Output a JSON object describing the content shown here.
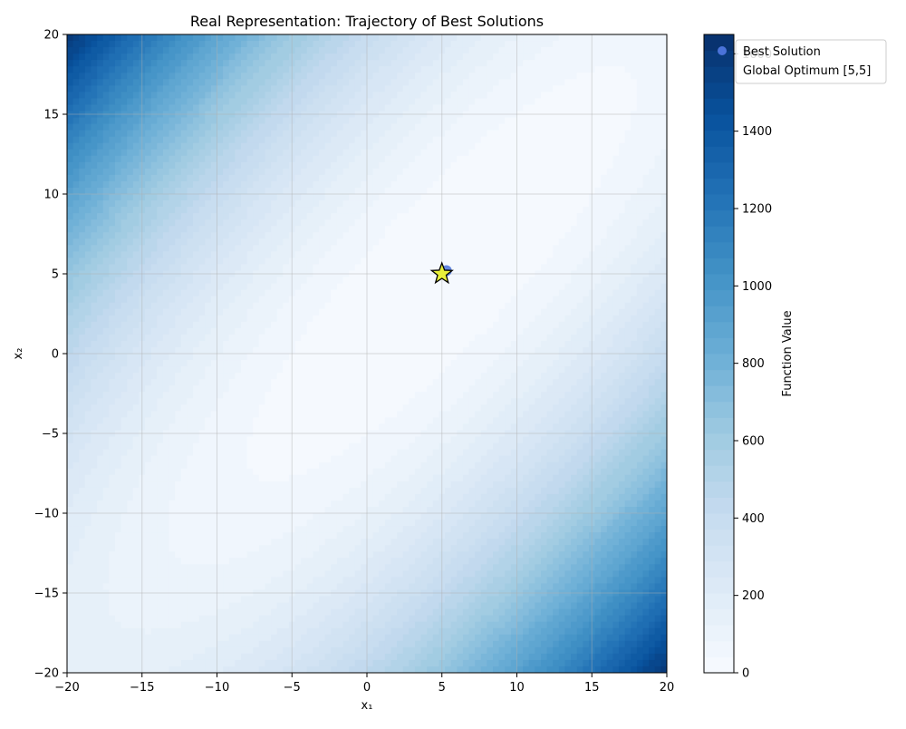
{
  "chart_data": {
    "type": "heatmap",
    "title": "Real Representation: Trajectory of Best Solutions",
    "xlabel": "x₁",
    "ylabel": "x₂",
    "xlim": [
      -20,
      20
    ],
    "ylim": [
      -20,
      20
    ],
    "x_ticks": [
      -20,
      -15,
      -10,
      -5,
      0,
      5,
      10,
      15,
      20
    ],
    "y_ticks": [
      -20,
      -15,
      -10,
      -5,
      0,
      5,
      10,
      15,
      20
    ],
    "grid": true,
    "colormap": "Blues",
    "colorbar": {
      "label": "Function Value",
      "range": [
        0,
        1650
      ],
      "ticks": [
        0,
        200,
        400,
        600,
        800,
        1000,
        1200,
        1400,
        1600
      ],
      "levels": 40
    },
    "function_samples": [
      {
        "x": -20,
        "y": 20,
        "value": 1650
      },
      {
        "x": 20,
        "y": -20,
        "value": 1650
      },
      {
        "x": -20,
        "y": -20,
        "value": 150
      },
      {
        "x": 20,
        "y": 20,
        "value": 150
      },
      {
        "x": 5,
        "y": 5,
        "value": 0
      },
      {
        "x": 0,
        "y": 0,
        "value": 50
      }
    ],
    "series": [
      {
        "name": "Best Solution",
        "kind": "scatter",
        "color": "#4a73d9",
        "points": [
          {
            "x": 5.3,
            "y": 5.2
          }
        ]
      },
      {
        "name": "Global Optimum [5,5]",
        "kind": "marker-star",
        "color": "#e8f03a",
        "points": [
          {
            "x": 5,
            "y": 5
          }
        ]
      }
    ],
    "legend": {
      "placement": "outside-top-right",
      "entries": [
        "Best Solution",
        "Global Optimum [5,5]"
      ]
    }
  }
}
